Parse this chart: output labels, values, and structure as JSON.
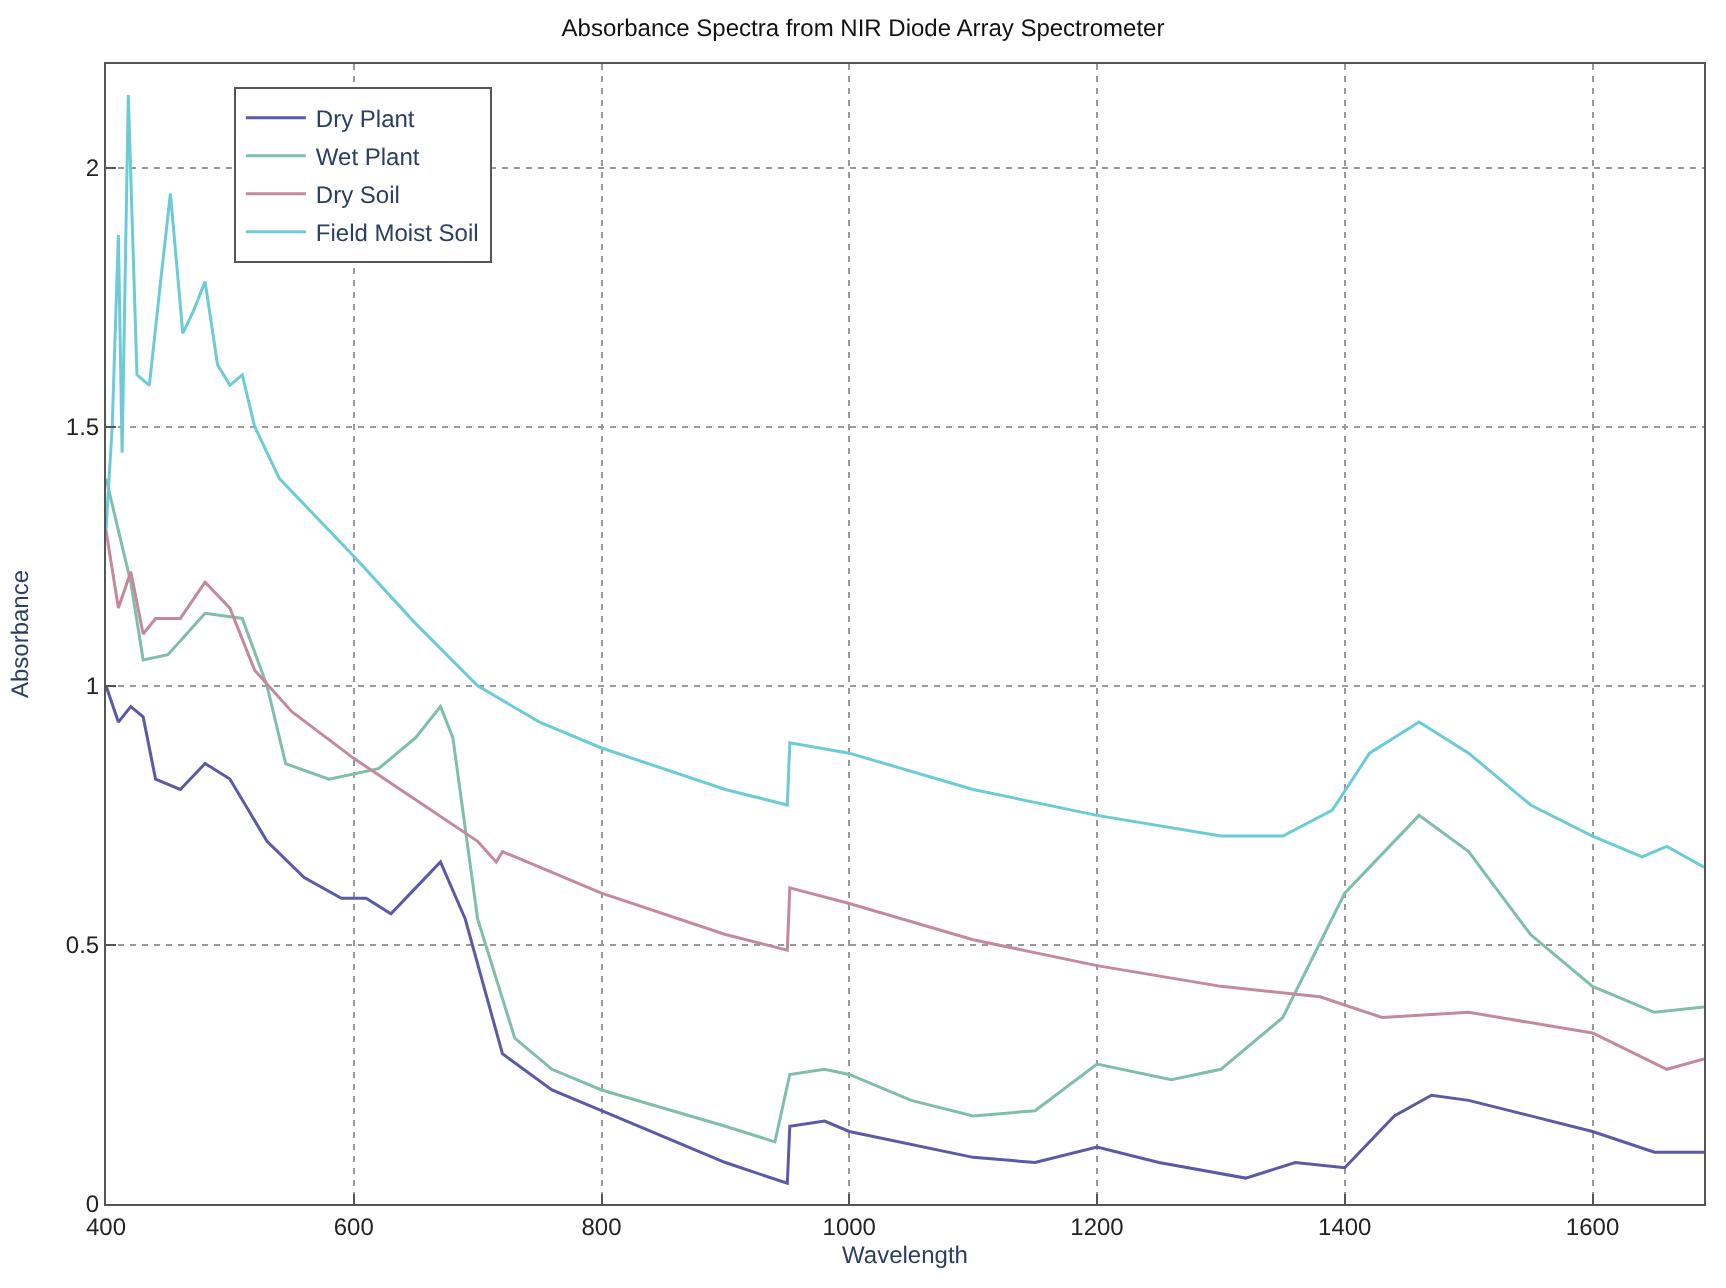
{
  "chart_data": {
    "type": "line",
    "title": "Absorbance Spectra from NIR Diode Array Spectrometer",
    "xlabel": "Wavelength",
    "ylabel": "Absorbance",
    "xlim": [
      400,
      1690
    ],
    "xticks": [
      400,
      600,
      800,
      1000,
      1200,
      1400,
      1600
    ],
    "ylim": [
      0,
      2.2
    ],
    "yticks": [
      0,
      0.5,
      1,
      1.5,
      2
    ],
    "grid": true,
    "legend": "top left",
    "line_style": "solid",
    "series": [
      {
        "name": "Dry Plant",
        "color": "#5a5aa8",
        "x": [
          400,
          410,
          420,
          430,
          440,
          460,
          480,
          500,
          530,
          560,
          590,
          610,
          630,
          650,
          670,
          690,
          720,
          760,
          800,
          900,
          950,
          952,
          980,
          1000,
          1100,
          1150,
          1200,
          1250,
          1320,
          1360,
          1400,
          1440,
          1470,
          1500,
          1550,
          1600,
          1650,
          1690
        ],
        "values": [
          1.0,
          0.93,
          0.96,
          0.94,
          0.82,
          0.8,
          0.85,
          0.82,
          0.7,
          0.63,
          0.59,
          0.59,
          0.56,
          0.61,
          0.66,
          0.55,
          0.29,
          0.22,
          0.18,
          0.08,
          0.04,
          0.15,
          0.16,
          0.14,
          0.09,
          0.08,
          0.11,
          0.08,
          0.05,
          0.08,
          0.07,
          0.17,
          0.21,
          0.2,
          0.17,
          0.14,
          0.1,
          0.1
        ]
      },
      {
        "name": "Wet Plant",
        "color": "#7fbfa8",
        "x": [
          400,
          410,
          420,
          430,
          450,
          465,
          480,
          510,
          530,
          545,
          580,
          620,
          650,
          670,
          680,
          700,
          730,
          760,
          800,
          900,
          940,
          952,
          980,
          1000,
          1050,
          1100,
          1150,
          1200,
          1260,
          1300,
          1350,
          1400,
          1460,
          1500,
          1550,
          1600,
          1650,
          1690
        ],
        "values": [
          1.4,
          1.3,
          1.2,
          1.05,
          1.06,
          1.1,
          1.14,
          1.13,
          1.0,
          0.85,
          0.82,
          0.84,
          0.9,
          0.96,
          0.9,
          0.55,
          0.32,
          0.26,
          0.22,
          0.15,
          0.12,
          0.25,
          0.26,
          0.25,
          0.2,
          0.17,
          0.18,
          0.27,
          0.24,
          0.26,
          0.36,
          0.6,
          0.75,
          0.68,
          0.52,
          0.42,
          0.37,
          0.38
        ]
      },
      {
        "name": "Dry Soil",
        "color": "#c48a9a",
        "x": [
          400,
          410,
          420,
          430,
          440,
          460,
          480,
          500,
          520,
          550,
          600,
          650,
          700,
          715,
          720,
          800,
          900,
          950,
          952,
          1000,
          1100,
          1200,
          1300,
          1380,
          1430,
          1500,
          1600,
          1660,
          1690
        ],
        "values": [
          1.3,
          1.15,
          1.22,
          1.1,
          1.13,
          1.13,
          1.2,
          1.15,
          1.03,
          0.95,
          0.86,
          0.78,
          0.7,
          0.66,
          0.68,
          0.6,
          0.52,
          0.49,
          0.61,
          0.58,
          0.51,
          0.46,
          0.42,
          0.4,
          0.36,
          0.37,
          0.33,
          0.26,
          0.28
        ]
      },
      {
        "name": "Field Moist Soil",
        "color": "#6ccbd6",
        "x": [
          400,
          405,
          410,
          413,
          418,
          425,
          435,
          445,
          452,
          462,
          470,
          480,
          490,
          500,
          510,
          520,
          540,
          600,
          650,
          700,
          750,
          800,
          900,
          950,
          952,
          1000,
          1100,
          1200,
          1300,
          1350,
          1390,
          1420,
          1460,
          1500,
          1550,
          1600,
          1640,
          1660,
          1690
        ],
        "values": [
          1.3,
          1.5,
          1.87,
          1.45,
          2.14,
          1.6,
          1.58,
          1.8,
          1.95,
          1.68,
          1.72,
          1.78,
          1.62,
          1.58,
          1.6,
          1.5,
          1.4,
          1.25,
          1.12,
          1.0,
          0.93,
          0.88,
          0.8,
          0.77,
          0.89,
          0.87,
          0.8,
          0.75,
          0.71,
          0.71,
          0.76,
          0.87,
          0.93,
          0.87,
          0.77,
          0.71,
          0.67,
          0.69,
          0.65
        ]
      }
    ]
  }
}
